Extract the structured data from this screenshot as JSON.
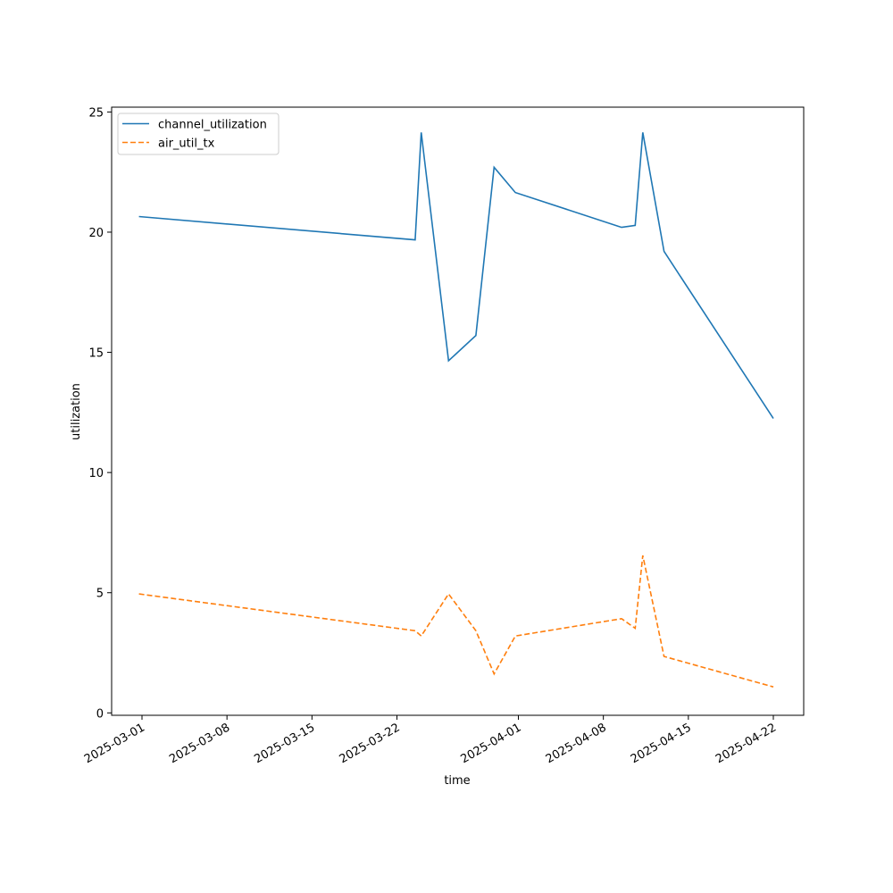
{
  "chart_data": {
    "type": "line",
    "title": "",
    "xlabel": "time",
    "ylabel": "utilization",
    "x_ticks": [
      "2025-03-01",
      "2025-03-08",
      "2025-03-15",
      "2025-03-22",
      "2025-04-01",
      "2025-04-08",
      "2025-04-15",
      "2025-04-22"
    ],
    "y_ticks": [
      0,
      5,
      10,
      15,
      20,
      25
    ],
    "xlim": [
      "2025-02-26T12:00",
      "2025-04-24T12:00"
    ],
    "ylim": [
      -0.1,
      25.2
    ],
    "grid": false,
    "legend_position": "top-left",
    "series": [
      {
        "name": "channel_utilization",
        "color": "#1f77b4",
        "dash": "solid",
        "points": [
          {
            "x": "2025-02-28T18:00",
            "y": 20.65
          },
          {
            "x": "2025-03-23T12:00",
            "y": 19.68
          },
          {
            "x": "2025-03-24T00:00",
            "y": 24.15
          },
          {
            "x": "2025-03-26T06:00",
            "y": 14.65
          },
          {
            "x": "2025-03-28T12:00",
            "y": 15.7
          },
          {
            "x": "2025-03-30T00:00",
            "y": 22.7
          },
          {
            "x": "2025-03-31T18:00",
            "y": 21.65
          },
          {
            "x": "2025-04-09T12:00",
            "y": 20.2
          },
          {
            "x": "2025-04-10T15:00",
            "y": 20.28
          },
          {
            "x": "2025-04-11T06:00",
            "y": 24.15
          },
          {
            "x": "2025-04-13T00:00",
            "y": 19.2
          },
          {
            "x": "2025-04-22T00:00",
            "y": 12.25
          }
        ]
      },
      {
        "name": "air_util_tx",
        "color": "#ff7f0e",
        "dash": "dashed",
        "points": [
          {
            "x": "2025-02-28T18:00",
            "y": 4.95
          },
          {
            "x": "2025-03-23T12:00",
            "y": 3.42
          },
          {
            "x": "2025-03-24T00:00",
            "y": 3.2
          },
          {
            "x": "2025-03-26T06:00",
            "y": 4.95
          },
          {
            "x": "2025-03-28T12:00",
            "y": 3.42
          },
          {
            "x": "2025-03-30T00:00",
            "y": 1.62
          },
          {
            "x": "2025-03-31T18:00",
            "y": 3.2
          },
          {
            "x": "2025-04-09T12:00",
            "y": 3.92
          },
          {
            "x": "2025-04-10T15:00",
            "y": 3.52
          },
          {
            "x": "2025-04-11T06:00",
            "y": 6.55
          },
          {
            "x": "2025-04-13T00:00",
            "y": 2.35
          },
          {
            "x": "2025-04-22T00:00",
            "y": 1.08
          }
        ]
      }
    ]
  }
}
